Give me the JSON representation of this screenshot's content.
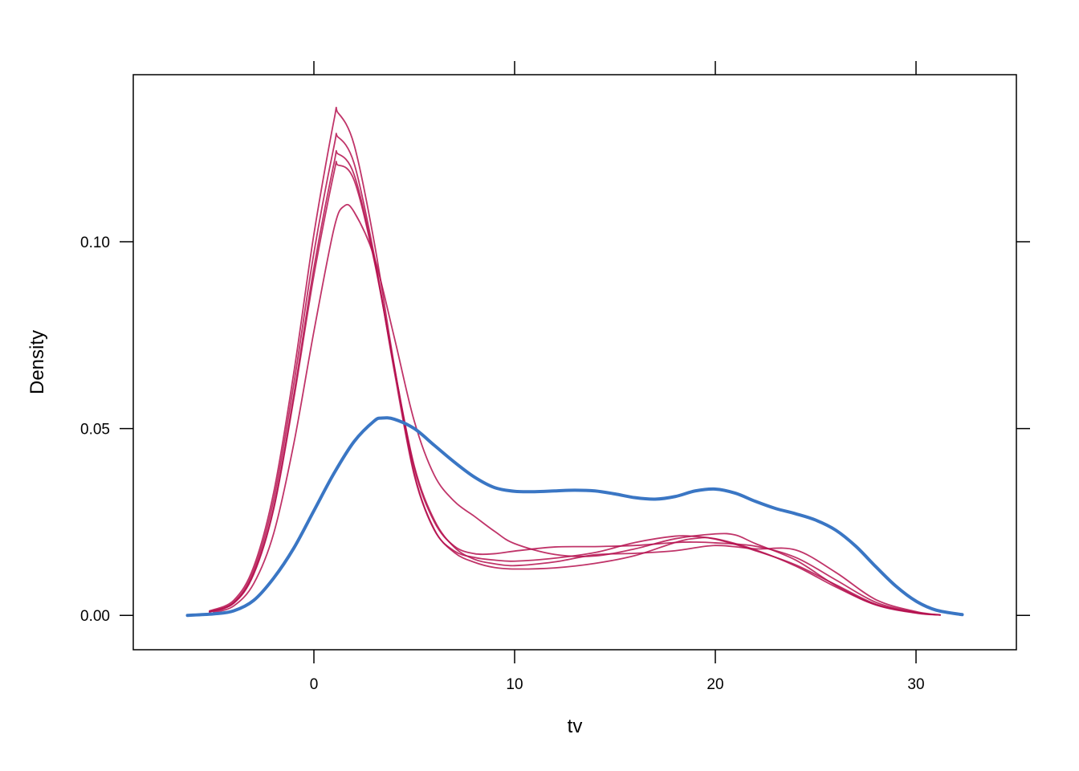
{
  "chart_data": {
    "type": "line",
    "title": "",
    "xlabel": "tv",
    "ylabel": "Density",
    "xlim": [
      -9.0,
      35.0
    ],
    "ylim": [
      -0.0092,
      0.1447
    ],
    "x_ticks": [
      0,
      10,
      20,
      30
    ],
    "x_tick_labels": [
      "0",
      "10",
      "20",
      "30"
    ],
    "y_ticks": [
      0.0,
      0.05,
      0.1
    ],
    "y_tick_labels": [
      "0.00",
      "0.05",
      "0.10"
    ],
    "grid": false,
    "legend": "none",
    "colors": {
      "observed": "#3a76c4",
      "imputed": "#b5104f"
    },
    "series": [
      {
        "role": "observed",
        "color": "#3a76c4",
        "points": [
          [
            -6.3,
            0.0
          ],
          [
            -5,
            0.0004
          ],
          [
            -4,
            0.0012
          ],
          [
            -3,
            0.004
          ],
          [
            -2,
            0.01
          ],
          [
            -1,
            0.018
          ],
          [
            0,
            0.028
          ],
          [
            1,
            0.038
          ],
          [
            2,
            0.0465
          ],
          [
            3,
            0.052
          ],
          [
            3.4,
            0.0528
          ],
          [
            4,
            0.0525
          ],
          [
            5,
            0.05
          ],
          [
            6,
            0.0455
          ],
          [
            7,
            0.041
          ],
          [
            8,
            0.037
          ],
          [
            9,
            0.0342
          ],
          [
            10,
            0.0332
          ],
          [
            11,
            0.0331
          ],
          [
            12,
            0.0333
          ],
          [
            13,
            0.0335
          ],
          [
            14,
            0.0333
          ],
          [
            15,
            0.0325
          ],
          [
            16,
            0.0315
          ],
          [
            17,
            0.0311
          ],
          [
            18,
            0.0318
          ],
          [
            19,
            0.0333
          ],
          [
            20,
            0.0338
          ],
          [
            21,
            0.0327
          ],
          [
            22,
            0.0305
          ],
          [
            23,
            0.0286
          ],
          [
            24,
            0.0272
          ],
          [
            25,
            0.0255
          ],
          [
            26,
            0.0228
          ],
          [
            27,
            0.0185
          ],
          [
            28,
            0.013
          ],
          [
            29,
            0.0078
          ],
          [
            30,
            0.0038
          ],
          [
            31,
            0.0014
          ],
          [
            32.3,
            0.0002
          ]
        ]
      },
      {
        "role": "imputed",
        "color": "#b5104f",
        "points": [
          [
            -5.2,
            0.0012
          ],
          [
            -4,
            0.004
          ],
          [
            -3,
            0.013
          ],
          [
            -2,
            0.033
          ],
          [
            -1,
            0.065
          ],
          [
            0,
            0.102
          ],
          [
            1,
            0.1325
          ],
          [
            1.2,
            0.1345
          ],
          [
            2,
            0.126
          ],
          [
            3,
            0.1
          ],
          [
            4,
            0.067
          ],
          [
            5,
            0.038
          ],
          [
            6,
            0.023
          ],
          [
            7,
            0.0168
          ],
          [
            8,
            0.0142
          ],
          [
            9,
            0.0128
          ],
          [
            10,
            0.0124
          ],
          [
            12,
            0.0127
          ],
          [
            14,
            0.0139
          ],
          [
            16,
            0.016
          ],
          [
            18,
            0.0195
          ],
          [
            19,
            0.0206
          ],
          [
            20,
            0.0205
          ],
          [
            22,
            0.0175
          ],
          [
            24,
            0.0132
          ],
          [
            26,
            0.0076
          ],
          [
            28,
            0.0028
          ],
          [
            30,
            0.0007
          ],
          [
            31.2,
            0.0001
          ]
        ]
      },
      {
        "role": "imputed",
        "color": "#b5104f",
        "points": [
          [
            -5.2,
            0.001
          ],
          [
            -4,
            0.0035
          ],
          [
            -3,
            0.012
          ],
          [
            -2,
            0.031
          ],
          [
            -1,
            0.062
          ],
          [
            0,
            0.097
          ],
          [
            1,
            0.1255
          ],
          [
            1.2,
            0.128
          ],
          [
            2,
            0.121
          ],
          [
            3,
            0.0965
          ],
          [
            4,
            0.0655
          ],
          [
            5,
            0.0375
          ],
          [
            6,
            0.0228
          ],
          [
            7,
            0.0172
          ],
          [
            8,
            0.0155
          ],
          [
            9,
            0.0148
          ],
          [
            10,
            0.0145
          ],
          [
            12,
            0.0153
          ],
          [
            14,
            0.0168
          ],
          [
            16,
            0.0195
          ],
          [
            18,
            0.0212
          ],
          [
            19,
            0.0211
          ],
          [
            20,
            0.0204
          ],
          [
            22,
            0.0173
          ],
          [
            24,
            0.0135
          ],
          [
            26,
            0.0082
          ],
          [
            28,
            0.003
          ],
          [
            30,
            0.0007
          ],
          [
            31.2,
            0.0001
          ]
        ]
      },
      {
        "role": "imputed",
        "color": "#b5104f",
        "points": [
          [
            -5.2,
            0.0009
          ],
          [
            -4,
            0.0033
          ],
          [
            -3,
            0.0112
          ],
          [
            -2,
            0.029
          ],
          [
            -1,
            0.059
          ],
          [
            0,
            0.093
          ],
          [
            1,
            0.121
          ],
          [
            1.2,
            0.1235
          ],
          [
            2,
            0.118
          ],
          [
            3,
            0.0955
          ],
          [
            4,
            0.0665
          ],
          [
            5,
            0.0395
          ],
          [
            6,
            0.025
          ],
          [
            7,
            0.0185
          ],
          [
            8,
            0.0165
          ],
          [
            9,
            0.0165
          ],
          [
            10,
            0.0172
          ],
          [
            12,
            0.0183
          ],
          [
            14,
            0.0184
          ],
          [
            16,
            0.0187
          ],
          [
            18,
            0.0195
          ],
          [
            19,
            0.0196
          ],
          [
            20,
            0.0194
          ],
          [
            22,
            0.0185
          ],
          [
            24,
            0.0155
          ],
          [
            26,
            0.0095
          ],
          [
            28,
            0.0035
          ],
          [
            30,
            0.0008
          ],
          [
            31.2,
            0.0001
          ]
        ]
      },
      {
        "role": "imputed",
        "color": "#b5104f",
        "points": [
          [
            -5.2,
            0.0009
          ],
          [
            -4,
            0.0032
          ],
          [
            -3,
            0.011
          ],
          [
            -2,
            0.0285
          ],
          [
            -1,
            0.058
          ],
          [
            0,
            0.091
          ],
          [
            1,
            0.1185
          ],
          [
            1.2,
            0.1205
          ],
          [
            2,
            0.1165
          ],
          [
            3,
            0.095
          ],
          [
            4,
            0.0665
          ],
          [
            5,
            0.04
          ],
          [
            6,
            0.0255
          ],
          [
            7,
            0.0182
          ],
          [
            8,
            0.015
          ],
          [
            9,
            0.0138
          ],
          [
            10,
            0.0133
          ],
          [
            12,
            0.0143
          ],
          [
            14,
            0.0162
          ],
          [
            16,
            0.0166
          ],
          [
            18,
            0.0173
          ],
          [
            20,
            0.0187
          ],
          [
            22,
            0.0178
          ],
          [
            24,
            0.0175
          ],
          [
            26,
            0.0115
          ],
          [
            28,
            0.0042
          ],
          [
            30,
            0.001
          ],
          [
            31.2,
            0.0001
          ]
        ]
      },
      {
        "role": "imputed",
        "color": "#b5104f",
        "points": [
          [
            -5,
            0.0008
          ],
          [
            -4,
            0.0025
          ],
          [
            -3,
            0.0085
          ],
          [
            -2,
            0.022
          ],
          [
            -1,
            0.046
          ],
          [
            0,
            0.076
          ],
          [
            1,
            0.1035
          ],
          [
            1.5,
            0.1095
          ],
          [
            2,
            0.108
          ],
          [
            3,
            0.096
          ],
          [
            4,
            0.0745
          ],
          [
            5,
            0.052
          ],
          [
            6,
            0.0375
          ],
          [
            7,
            0.0305
          ],
          [
            8,
            0.0265
          ],
          [
            9,
            0.0225
          ],
          [
            10,
            0.0192
          ],
          [
            12,
            0.0163
          ],
          [
            14,
            0.0159
          ],
          [
            16,
            0.0178
          ],
          [
            18,
            0.0205
          ],
          [
            20,
            0.0218
          ],
          [
            21,
            0.0215
          ],
          [
            22,
            0.0192
          ],
          [
            24,
            0.0148
          ],
          [
            26,
            0.008
          ],
          [
            28,
            0.0028
          ],
          [
            30,
            0.0006
          ],
          [
            31.2,
            0.0001
          ]
        ]
      }
    ]
  }
}
